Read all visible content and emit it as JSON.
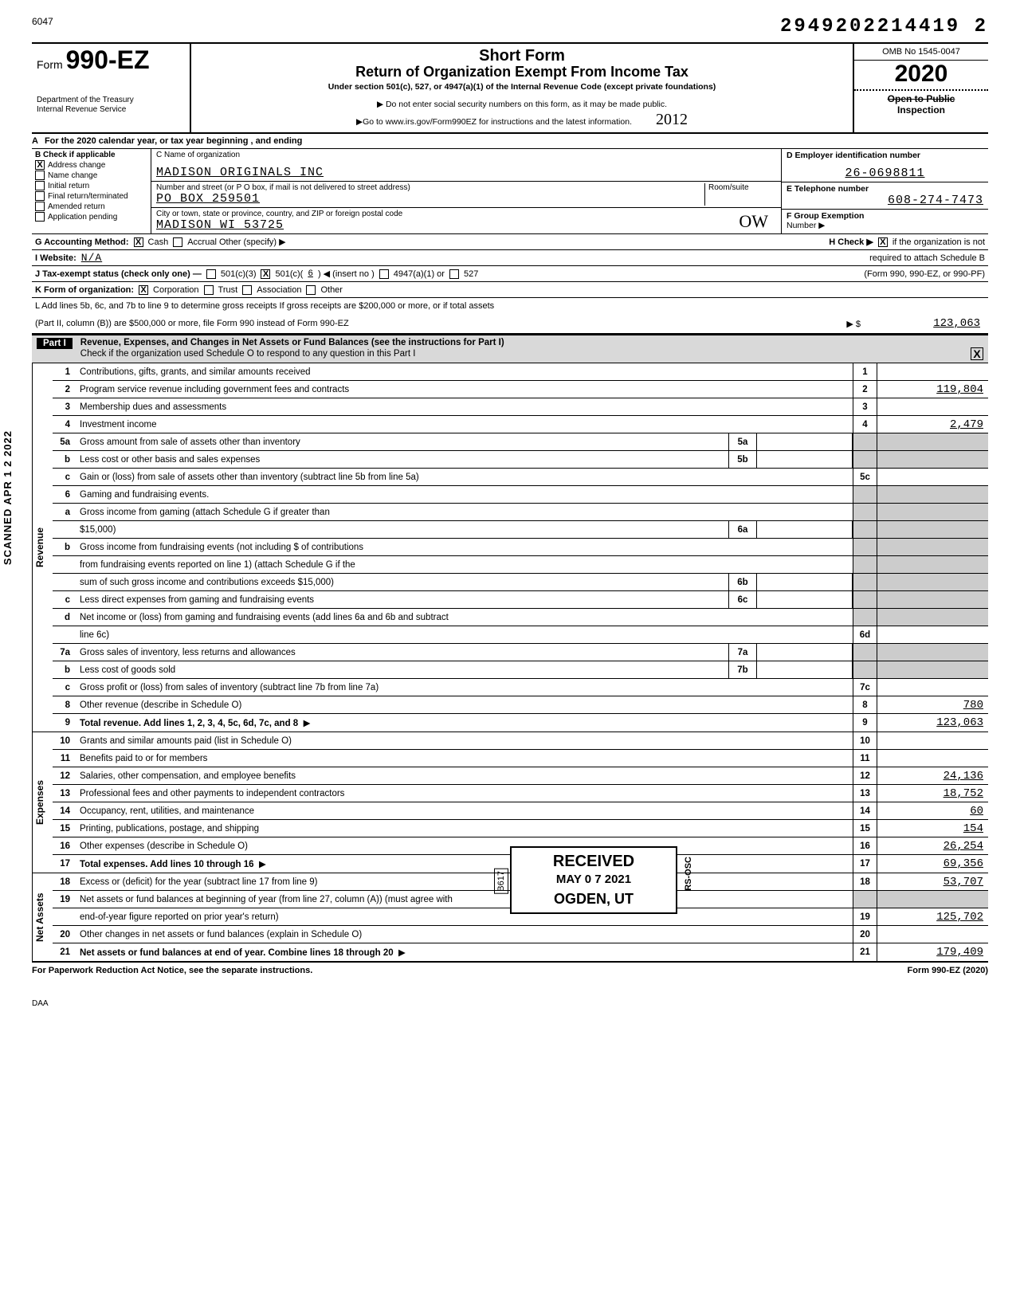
{
  "top": {
    "left_num": "6047",
    "right_num": "2949202214419  2"
  },
  "form": {
    "prefix": "Form",
    "number": "990-EZ",
    "dept1": "Department of the Treasury",
    "dept2": "Internal Revenue Service"
  },
  "title": {
    "h1": "Short Form",
    "h2": "Return of Organization Exempt From Income Tax",
    "sub": "Under section 501(c), 527, or 4947(a)(1) of the Internal Revenue Code (except private foundations)",
    "note1": "▶ Do not enter social security numbers on this form, as it may be made public.",
    "note2": "▶Go to www.irs.gov/Form990EZ for instructions and the latest information.",
    "hand_year": "2012"
  },
  "right": {
    "omb": "OMB No 1545-0047",
    "year": "2020",
    "open1": "Open to Public",
    "open2": "Inspection"
  },
  "line_a": "For the 2020 calendar year, or tax year beginning                                   , and ending",
  "b": {
    "title": "Check if applicable",
    "items": [
      "Address change",
      "Name change",
      "Initial return",
      "Final return/terminated",
      "Amended return",
      "Application pending"
    ],
    "checked_index": 0,
    "checked_mark": "X"
  },
  "c": {
    "label_name": "C  Name of organization",
    "name": "MADISON ORIGINALS INC",
    "label_addr": "Number and street (or P O box, if mail is not delivered to street address)",
    "room_label": "Room/suite",
    "addr": "PO BOX 259501",
    "label_city": "City or town, state or province, country, and ZIP or foreign postal code",
    "city": "MADISON                   WI 53725",
    "hand_initials": "OW"
  },
  "d": {
    "label": "D  Employer identification number",
    "val": "26-0698811"
  },
  "e": {
    "label": "E  Telephone number",
    "val": "608-274-7473"
  },
  "f": {
    "label": "F  Group Exemption",
    "label2": "Number  ▶"
  },
  "g": {
    "label": "G  Accounting Method:",
    "cash": "Cash",
    "accrual": "Accrual  Other (specify) ▶",
    "cash_x": "X"
  },
  "h": {
    "label": "H  Check ▶",
    "x": "X",
    "text": "if the organization is not",
    "text2": "required to attach Schedule B",
    "text3": "(Form 990, 990-EZ, or 990-PF)"
  },
  "i": {
    "label": "I   Website:",
    "val": "N/A"
  },
  "j": {
    "label": "J   Tax-exempt status (check only one) —",
    "c3": "501(c)(3)",
    "cx": "X",
    "c": "501(c)(",
    "cn": "6",
    "ci": ") ◀ (insert no )",
    "a47": "4947(a)(1) or",
    "s527": "527"
  },
  "k": {
    "label": "K  Form of organization:",
    "x": "X",
    "corp": "Corporation",
    "trust": "Trust",
    "assoc": "Association",
    "other": "Other"
  },
  "l": {
    "text1": "L   Add lines 5b, 6c, and 7b to line 9 to determine gross receipts  If gross receipts are $200,000 or more, or if total assets",
    "text2": "(Part II, column (B)) are $500,000 or more, file Form 990 instead of Form 990-EZ",
    "arrow": "▶ $",
    "val": "123,063"
  },
  "part1": {
    "label": "Part I",
    "title": "Revenue, Expenses, and Changes in Net Assets or Fund Balances (see the instructions for Part I)",
    "sub": "Check if the organization used Schedule O to respond to any question in this Part I",
    "check": "X"
  },
  "scanned_text": "SCANNED APR 1 2 2022",
  "side_labels": {
    "rev": "Revenue",
    "exp": "Expenses",
    "net": "Net Assets"
  },
  "rows": [
    {
      "n": "1",
      "d": "Contributions, gifts, grants, and similar amounts received",
      "rn": "1",
      "rv": ""
    },
    {
      "n": "2",
      "d": "Program service revenue including government fees and contracts",
      "rn": "2",
      "rv": "119,804"
    },
    {
      "n": "3",
      "d": "Membership dues and assessments",
      "rn": "3",
      "rv": ""
    },
    {
      "n": "4",
      "d": "Investment income",
      "rn": "4",
      "rv": "2,479"
    },
    {
      "n": "5a",
      "d": "Gross amount from sale of assets other than inventory",
      "mn": "5a",
      "shade": true
    },
    {
      "n": "b",
      "d": "Less cost or other basis and sales expenses",
      "mn": "5b",
      "shade": true
    },
    {
      "n": "c",
      "d": "Gain or (loss) from sale of assets other than inventory (subtract line 5b from line 5a)",
      "rn": "5c",
      "rv": ""
    },
    {
      "n": "6",
      "d": "Gaming and fundraising events.",
      "shade": true,
      "nornum": true
    },
    {
      "n": "a",
      "d": "Gross income from gaming (attach Schedule G if greater than",
      "shade": true,
      "nornum": true
    },
    {
      "n": "",
      "d": "$15,000)",
      "mn": "6a",
      "shade": true
    },
    {
      "n": "b",
      "d": "Gross income from fundraising events (not including $                               of contributions",
      "shade": true,
      "nornum": true
    },
    {
      "n": "",
      "d": "from fundraising events reported on line 1) (attach Schedule G if the",
      "shade": true,
      "nornum": true
    },
    {
      "n": "",
      "d": "sum of such gross income and contributions exceeds $15,000)",
      "mn": "6b",
      "shade": true
    },
    {
      "n": "c",
      "d": "Less direct expenses from gaming and fundraising events",
      "mn": "6c",
      "shade": true
    },
    {
      "n": "d",
      "d": "Net income or (loss) from gaming and fundraising events (add lines 6a and 6b and subtract",
      "shade": true,
      "nornum": true
    },
    {
      "n": "",
      "d": "line 6c)",
      "rn": "6d",
      "rv": ""
    },
    {
      "n": "7a",
      "d": "Gross sales of inventory, less returns and allowances",
      "mn": "7a",
      "shade": true
    },
    {
      "n": "b",
      "d": "Less cost of goods sold",
      "mn": "7b",
      "shade": true
    },
    {
      "n": "c",
      "d": "Gross profit or (loss) from sales of inventory (subtract line 7b from line 7a)",
      "rn": "7c",
      "rv": ""
    },
    {
      "n": "8",
      "d": "Other revenue (describe in Schedule O)",
      "rn": "8",
      "rv": "780"
    },
    {
      "n": "9",
      "d": "Total revenue. Add lines 1, 2, 3, 4, 5c, 6d, 7c, and 8",
      "rn": "9",
      "rv": "123,063",
      "bold": true,
      "arrow": true
    }
  ],
  "exp_rows": [
    {
      "n": "10",
      "d": "Grants and similar amounts paid (list in Schedule O)",
      "rn": "10",
      "rv": ""
    },
    {
      "n": "11",
      "d": "Benefits paid to or for members",
      "rn": "11",
      "rv": ""
    },
    {
      "n": "12",
      "d": "Salaries, other compensation, and employee benefits",
      "rn": "12",
      "rv": "24,136"
    },
    {
      "n": "13",
      "d": "Professional fees and other payments to independent contractors",
      "rn": "13",
      "rv": "18,752"
    },
    {
      "n": "14",
      "d": "Occupancy, rent, utilities, and maintenance",
      "rn": "14",
      "rv": "60"
    },
    {
      "n": "15",
      "d": "Printing, publications, postage, and shipping",
      "rn": "15",
      "rv": "154"
    },
    {
      "n": "16",
      "d": "Other expenses (describe in Schedule O)",
      "rn": "16",
      "rv": "26,254"
    },
    {
      "n": "17",
      "d": "Total expenses. Add lines 10 through 16",
      "rn": "17",
      "rv": "69,356",
      "bold": true,
      "arrow": true
    }
  ],
  "net_rows": [
    {
      "n": "18",
      "d": "Excess or (deficit) for the year (subtract line 17 from line 9)",
      "rn": "18",
      "rv": "53,707"
    },
    {
      "n": "19",
      "d": "Net assets or fund balances at beginning of year (from line 27, column (A)) (must agree with",
      "shade": true,
      "nornum": true
    },
    {
      "n": "",
      "d": "end-of-year figure reported on prior year's return)",
      "rn": "19",
      "rv": "125,702"
    },
    {
      "n": "20",
      "d": "Other changes in net assets or fund balances (explain in Schedule O)",
      "rn": "20",
      "rv": ""
    },
    {
      "n": "21",
      "d": "Net assets or fund balances at end of year. Combine lines 18 through 20",
      "rn": "21",
      "rv": "179,409",
      "bold": true,
      "arrow": true
    }
  ],
  "stamps": {
    "received": "RECEIVED",
    "date": "MAY 0 7 2021",
    "ogden": "OGDEN, UT",
    "b617": "B617",
    "rsosc": "RS-OSC"
  },
  "footer": {
    "left": "For Paperwork Reduction Act Notice, see the separate instructions.",
    "right": "Form 990-EZ (2020)",
    "daa": "DAA"
  }
}
